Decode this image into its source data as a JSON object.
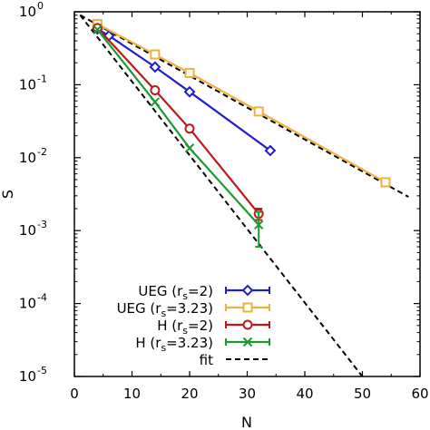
{
  "chart_data": {
    "type": "line",
    "xlabel": "N",
    "ylabel": "S",
    "xlim": [
      0,
      60
    ],
    "ylim": [
      1e-05,
      1
    ],
    "yscale": "log",
    "grid": false,
    "legend_placement": "bottom-left",
    "x_ticks": [
      "0",
      "10",
      "20",
      "30",
      "40",
      "50",
      "60"
    ],
    "y_ticks": [
      {
        "base": "10",
        "exp": "-5"
      },
      {
        "base": "10",
        "exp": "-4"
      },
      {
        "base": "10",
        "exp": "-3"
      },
      {
        "base": "10",
        "exp": "-2"
      },
      {
        "base": "10",
        "exp": "-1"
      },
      {
        "base": "10",
        "exp": "0"
      }
    ],
    "series": [
      {
        "name": "UEG (r",
        "name_sub": "s",
        "name_tail": "=2)",
        "color": "#1f1fcc",
        "marker": "diamond",
        "x": [
          4,
          6,
          14,
          20,
          34
        ],
        "y": [
          0.58,
          0.47,
          0.175,
          0.08,
          0.0125
        ],
        "err": [
          0,
          0,
          0,
          0,
          0
        ]
      },
      {
        "name": "UEG (r",
        "name_sub": "s",
        "name_tail": "=3.23)",
        "color": "#f0b040",
        "marker": "square",
        "x": [
          4,
          14,
          20,
          32,
          54
        ],
        "y": [
          0.68,
          0.26,
          0.145,
          0.043,
          0.0046
        ],
        "err": [
          0,
          0,
          0,
          0,
          0
        ]
      },
      {
        "name": "H (r",
        "name_sub": "s",
        "name_tail": "=2)",
        "color": "#c01818",
        "marker": "circle",
        "x": [
          4,
          14,
          20,
          32
        ],
        "y": [
          0.6,
          0.084,
          0.025,
          0.0017
        ],
        "err": [
          0,
          0,
          0,
          0.0003
        ]
      },
      {
        "name": "H (r",
        "name_sub": "s",
        "name_tail": "=3.23)",
        "color": "#1a9a30",
        "marker": "x",
        "x": [
          4,
          14,
          20,
          32
        ],
        "y": [
          0.57,
          0.058,
          0.0135,
          0.0012
        ],
        "err": [
          0,
          0,
          0,
          0.0006
        ]
      }
    ],
    "fits": [
      {
        "name": "fit",
        "x": [
          1,
          58
        ],
        "y": [
          0.9,
          0.0029
        ]
      },
      {
        "x": [
          1,
          50
        ],
        "y": [
          0.9,
          1e-05
        ]
      }
    ]
  }
}
